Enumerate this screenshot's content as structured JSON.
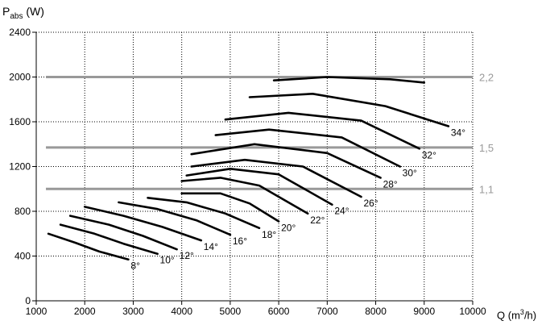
{
  "ylabel": {
    "main": "P",
    "sub": "abs",
    "unit": "(W)"
  },
  "xlabel": {
    "main": "Q",
    "unit_pre": "(m",
    "unit_sup": "3",
    "unit_post": "/h)"
  },
  "chart_data": {
    "type": "line",
    "xlim": [
      1000,
      10000
    ],
    "ylim": [
      0,
      2400
    ],
    "grid": true,
    "x_ticks": [
      "1000",
      "2000",
      "3000",
      "4000",
      "5000",
      "6000",
      "7000",
      "8000",
      "9000",
      "10000"
    ],
    "y_ticks": [
      "0",
      "400",
      "800",
      "1200",
      "1600",
      "2000",
      "2400"
    ],
    "reference_lines": [
      {
        "label": "2,2",
        "y": 2000,
        "x_start": 1200,
        "x_end": 10000,
        "color": "#999999"
      },
      {
        "label": "1,5",
        "y": 1370,
        "x_start": 1200,
        "x_end": 10000,
        "color": "#999999"
      },
      {
        "label": "1,1",
        "y": 1000,
        "x_start": 1200,
        "x_end": 10000,
        "color": "#999999"
      }
    ],
    "series": [
      {
        "name": "8°",
        "x": [
          1250,
          1800,
          2300,
          2900
        ],
        "y": [
          600,
          520,
          440,
          370
        ]
      },
      {
        "name": "10°",
        "x": [
          1500,
          2200,
          2800,
          3500
        ],
        "y": [
          680,
          600,
          510,
          420
        ]
      },
      {
        "name": "12°",
        "x": [
          1700,
          2500,
          3200,
          3900
        ],
        "y": [
          760,
          680,
          580,
          460
        ]
      },
      {
        "name": "14°",
        "x": [
          2000,
          2800,
          3600,
          4400
        ],
        "y": [
          840,
          760,
          660,
          540
        ]
      },
      {
        "name": "16°",
        "x": [
          2700,
          3500,
          4300,
          5000
        ],
        "y": [
          880,
          820,
          720,
          590
        ]
      },
      {
        "name": "18°",
        "x": [
          3300,
          4100,
          4900,
          5600
        ],
        "y": [
          920,
          880,
          780,
          650
        ]
      },
      {
        "name": "20°",
        "x": [
          4000,
          4800,
          5400,
          6000
        ],
        "y": [
          960,
          960,
          870,
          710
        ]
      },
      {
        "name": "22°",
        "x": [
          4000,
          4800,
          5600,
          6600
        ],
        "y": [
          1070,
          1100,
          1030,
          780
        ]
      },
      {
        "name": "24°",
        "x": [
          4100,
          5000,
          6000,
          7100
        ],
        "y": [
          1120,
          1180,
          1130,
          860
        ]
      },
      {
        "name": "26°",
        "x": [
          4200,
          5300,
          6500,
          7700
        ],
        "y": [
          1200,
          1260,
          1200,
          930
        ]
      },
      {
        "name": "28°",
        "x": [
          4200,
          5500,
          7000,
          8100
        ],
        "y": [
          1310,
          1400,
          1320,
          1100
        ]
      },
      {
        "name": "30°",
        "x": [
          4700,
          5800,
          7300,
          8500
        ],
        "y": [
          1480,
          1530,
          1460,
          1200
        ]
      },
      {
        "name": "32°",
        "x": [
          4900,
          6200,
          7700,
          8900
        ],
        "y": [
          1620,
          1680,
          1610,
          1360
        ]
      },
      {
        "name": "34°",
        "x": [
          5400,
          6700,
          8200,
          9500
        ],
        "y": [
          1820,
          1850,
          1740,
          1560
        ]
      },
      {
        "name": "",
        "x": [
          5900,
          7000,
          8300,
          9000
        ],
        "y": [
          1970,
          2000,
          1980,
          1950
        ]
      }
    ]
  }
}
